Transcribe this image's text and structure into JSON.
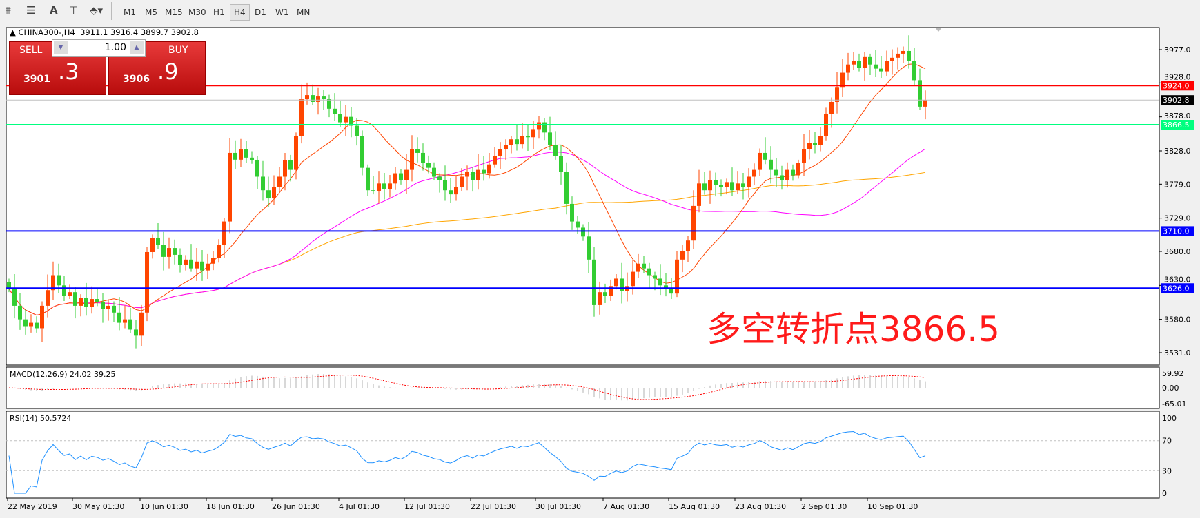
{
  "toolbar": {
    "timeframes": [
      "M1",
      "M5",
      "M15",
      "M30",
      "H1",
      "H4",
      "D1",
      "W1",
      "MN"
    ],
    "active": "H4",
    "icons": [
      "chart-objects-icon",
      "fibonacci-icon",
      "text-icon",
      "text-label-icon",
      "arrows-dropdown-icon"
    ]
  },
  "header": {
    "symbol": "CHINA300-,H4",
    "ohlc": "3911.1 3916.4 3899.7 3902.8"
  },
  "trade": {
    "sell_label": "SELL",
    "buy_label": "BUY",
    "lot": "1.00",
    "sell_main": "3901",
    "sell_frac": ".3",
    "buy_main": "3906",
    "buy_frac": ".9"
  },
  "annotation": "多空转折点3866.5",
  "colors": {
    "bull": "#ff4500",
    "bear": "#32cd32",
    "ma_fast": "#ff4500",
    "ma_mid": "#ff00ff",
    "ma_slow": "#ffa500",
    "resistance": "#ff0000",
    "pivot": "#00ff7f",
    "support": "#0000ff",
    "rsi": "#1e90ff",
    "macd_signal": "#ff0000"
  },
  "chart_data": [
    {
      "type": "candlestick",
      "title": "CHINA300-,H4",
      "x_tick_labels": [
        "22 May 2019",
        "30 May 01:30",
        "10 Jun 01:30",
        "18 Jun 01:30",
        "26 Jun 01:30",
        "4 Jul 01:30",
        "12 Jul 01:30",
        "22 Jul 01:30",
        "30 Jul 01:30",
        "7 Aug 01:30",
        "15 Aug 01:30",
        "23 Aug 01:30",
        "2 Sep 01:30",
        "10 Sep 01:30"
      ],
      "y_ticks": [
        "3977.0",
        "3928.0",
        "3878.0",
        "3828.0",
        "3779.0",
        "3729.0",
        "3680.0",
        "3630.0",
        "3580.0",
        "3531.0"
      ],
      "ylim": [
        3520,
        4000
      ],
      "closes": [
        3625,
        3600,
        3580,
        3570,
        3575,
        3567,
        3600,
        3623,
        3645,
        3630,
        3615,
        3620,
        3600,
        3612,
        3598,
        3610,
        3606,
        3595,
        3600,
        3590,
        3575,
        3580,
        3565,
        3556,
        3590,
        3679,
        3700,
        3690,
        3672,
        3685,
        3675,
        3660,
        3668,
        3655,
        3665,
        3652,
        3662,
        3670,
        3690,
        3724,
        3825,
        3815,
        3830,
        3818,
        3814,
        3790,
        3770,
        3758,
        3775,
        3790,
        3814,
        3800,
        3850,
        3904,
        3910,
        3900,
        3908,
        3904,
        3890,
        3882,
        3870,
        3878,
        3865,
        3850,
        3803,
        3770,
        3769,
        3780,
        3772,
        3780,
        3795,
        3785,
        3800,
        3831,
        3825,
        3810,
        3803,
        3790,
        3785,
        3770,
        3764,
        3775,
        3790,
        3797,
        3785,
        3800,
        3795,
        3808,
        3820,
        3830,
        3837,
        3845,
        3838,
        3850,
        3848,
        3860,
        3870,
        3855,
        3837,
        3820,
        3797,
        3750,
        3724,
        3715,
        3702,
        3668,
        3601,
        3620,
        3615,
        3629,
        3640,
        3622,
        3629,
        3650,
        3662,
        3655,
        3645,
        3640,
        3630,
        3625,
        3618,
        3668,
        3680,
        3696,
        3747,
        3780,
        3770,
        3785,
        3778,
        3775,
        3782,
        3770,
        3780,
        3775,
        3790,
        3800,
        3825,
        3815,
        3800,
        3792,
        3785,
        3800,
        3792,
        3810,
        3831,
        3840,
        3837,
        3850,
        3882,
        3900,
        3921,
        3943,
        3955,
        3960,
        3950,
        3966,
        3955,
        3949,
        3945,
        3960,
        3965,
        3971,
        3975,
        3960,
        3932,
        3893,
        3903
      ],
      "horizontal_lines": [
        {
          "value": 3924.0,
          "label": "3924.0",
          "color": "#ff0000"
        },
        {
          "value": 3866.5,
          "label": "3866.5",
          "color": "#00ff7f"
        },
        {
          "value": 3710.0,
          "label": "3710.0",
          "color": "#0000ff"
        },
        {
          "value": 3626.0,
          "label": "3626.0",
          "color": "#0000ff"
        }
      ],
      "bid_line": {
        "value": 3902.8,
        "label": "3902.8"
      }
    },
    {
      "type": "bar",
      "title": "MACD(12,26,9) 24.02 39.25",
      "y_ticks": [
        "59.92",
        "0.00",
        "-65.01"
      ]
    },
    {
      "type": "line",
      "title": "RSI(14) 50.5724",
      "y_ticks": [
        "100",
        "70",
        "30",
        "0"
      ],
      "ylim": [
        0,
        100
      ],
      "levels": [
        70,
        30
      ]
    }
  ]
}
